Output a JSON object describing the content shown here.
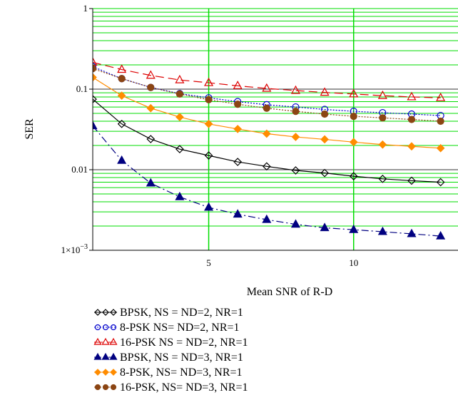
{
  "chart_data": {
    "type": "line",
    "xlabel": "Mean SNR of R-D",
    "ylabel": "SER",
    "xlim": [
      1,
      13
    ],
    "ylim": [
      0.001,
      1
    ],
    "yscale": "log",
    "grid": true,
    "grid_color": "#00dd00",
    "x_ticks": [
      {
        "value": 5,
        "label": "5"
      },
      {
        "value": 10,
        "label": "10"
      }
    ],
    "y_ticks": [
      {
        "value": 1,
        "label": "1"
      },
      {
        "value": 0.1,
        "label": "0.1"
      },
      {
        "value": 0.01,
        "label": "0.01"
      },
      {
        "value": 0.001,
        "label": "1×10",
        "superscript": "−3"
      }
    ],
    "legend_position": "bottom",
    "series": [
      {
        "name": "BPSK, NS =  ND=2, NR=1",
        "color": "#000000",
        "dash": "solid",
        "marker": "diamond-open",
        "x": [
          1,
          2,
          3,
          4,
          5,
          6,
          7,
          8,
          9,
          10,
          11,
          12,
          13
        ],
        "values": [
          0.075,
          0.037,
          0.024,
          0.018,
          0.015,
          0.0125,
          0.011,
          0.0098,
          0.0091,
          0.0083,
          0.0077,
          0.0073,
          0.007
        ]
      },
      {
        "name": "8-PSK  NS=  ND=2, NR=1",
        "color": "#0000cc",
        "dash": "dotted",
        "marker": "circle-open",
        "x": [
          1,
          2,
          3,
          4,
          5,
          6,
          7,
          8,
          9,
          10,
          11,
          12,
          13
        ],
        "values": [
          0.19,
          0.135,
          0.105,
          0.088,
          0.078,
          0.07,
          0.064,
          0.06,
          0.056,
          0.053,
          0.051,
          0.049,
          0.047
        ]
      },
      {
        "name": "16-PSK  NS =  ND=2, NR=1",
        "color": "#dd0000",
        "dash": "longdash",
        "marker": "triangle-open",
        "x": [
          1,
          2,
          3,
          4,
          5,
          6,
          7,
          8,
          9,
          10,
          11,
          12,
          13
        ],
        "values": [
          0.215,
          0.175,
          0.148,
          0.13,
          0.12,
          0.11,
          0.102,
          0.096,
          0.091,
          0.087,
          0.083,
          0.08,
          0.078
        ]
      },
      {
        "name": "BPSK, NS =  ND=3, NR=1",
        "color": "#000080",
        "dash": "dashdot",
        "marker": "triangle-filled",
        "x": [
          1,
          2,
          3,
          4,
          5,
          6,
          7,
          8,
          9,
          10,
          11,
          12,
          13
        ],
        "values": [
          0.035,
          0.013,
          0.0068,
          0.0046,
          0.0034,
          0.0028,
          0.0024,
          0.0021,
          0.0019,
          0.0018,
          0.0017,
          0.0016,
          0.0015
        ]
      },
      {
        "name": "8-PSK, NS=  ND=3, NR=1",
        "color": "#ff8c00",
        "dash": "solid",
        "marker": "diamond-filled",
        "x": [
          1,
          2,
          3,
          4,
          5,
          6,
          7,
          8,
          9,
          10,
          11,
          12,
          13
        ],
        "values": [
          0.14,
          0.083,
          0.058,
          0.045,
          0.037,
          0.032,
          0.028,
          0.0255,
          0.0238,
          0.022,
          0.0205,
          0.0195,
          0.0185
        ]
      },
      {
        "name": "16-PSK, NS=  ND=3, NR=1",
        "color": "#8b4513",
        "dash": "dotted",
        "marker": "circle-filled",
        "x": [
          1,
          2,
          3,
          4,
          5,
          6,
          7,
          8,
          9,
          10,
          11,
          12,
          13
        ],
        "values": [
          0.18,
          0.135,
          0.105,
          0.087,
          0.074,
          0.065,
          0.058,
          0.053,
          0.049,
          0.046,
          0.044,
          0.042,
          0.04
        ]
      }
    ]
  }
}
